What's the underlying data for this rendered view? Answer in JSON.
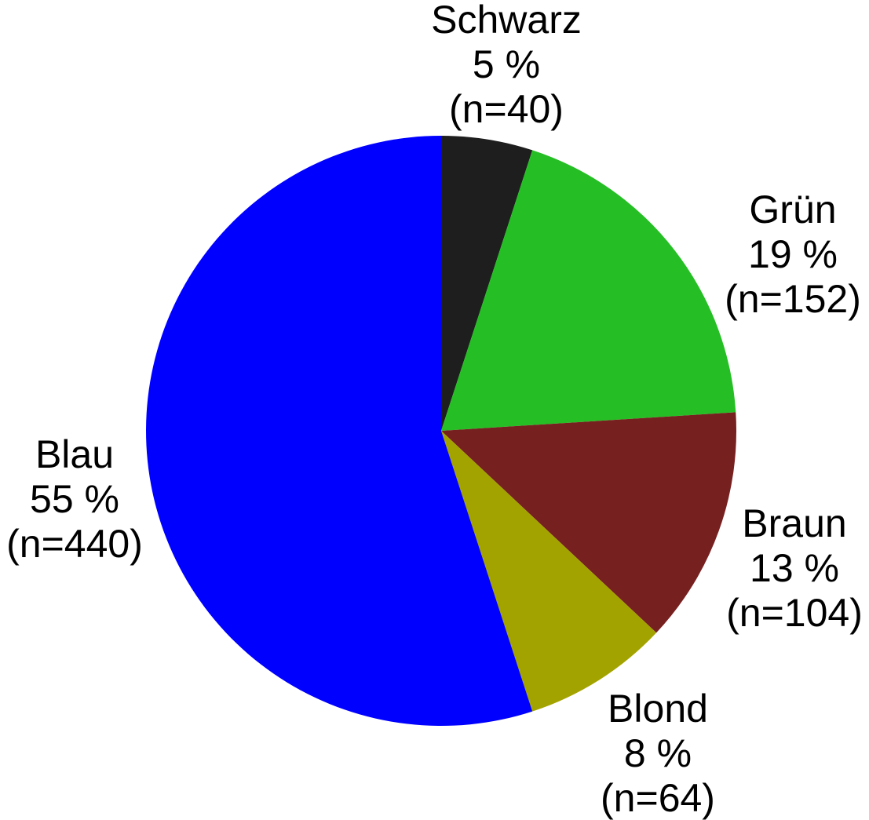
{
  "chart_data": {
    "type": "pie",
    "title": "",
    "start_angle_deg": 0,
    "direction": "clockwise",
    "slices": [
      {
        "name": "Schwarz",
        "percent_label": "5 %",
        "count_label": "(n=40)",
        "value": 40,
        "color": "#1e1e1e"
      },
      {
        "name": "Grün",
        "percent_label": "19 %",
        "count_label": "(n=152)",
        "value": 152,
        "color": "#25bf25"
      },
      {
        "name": "Braun",
        "percent_label": "13 %",
        "count_label": "(n=104)",
        "value": 104,
        "color": "#772020"
      },
      {
        "name": "Blond",
        "percent_label": "8 %",
        "count_label": "(n=64)",
        "value": 64,
        "color": "#a3a300"
      },
      {
        "name": "Blau",
        "percent_label": "55 %",
        "count_label": "(n=440)",
        "value": 440,
        "color": "#0000ff"
      }
    ]
  }
}
